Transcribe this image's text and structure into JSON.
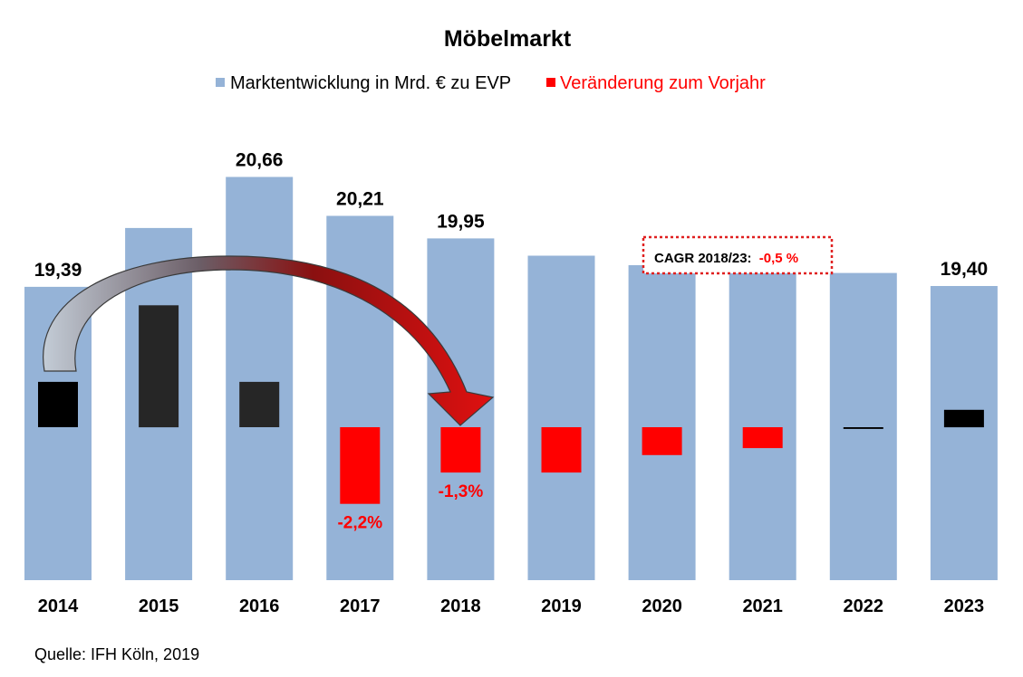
{
  "chart_data": {
    "type": "bar",
    "title": "Möbelmarkt",
    "categories": [
      "2014",
      "2015",
      "2016",
      "2017",
      "2018",
      "2019",
      "2020",
      "2021",
      "2022",
      "2023"
    ],
    "series": [
      {
        "name": "Marktentwicklung in Mrd. € zu EVP",
        "values": [
          19.39,
          20.07,
          20.66,
          20.21,
          19.95,
          19.75,
          19.64,
          19.56,
          19.55,
          19.4
        ],
        "labels": [
          "19,39",
          "",
          "20,66",
          "20,21",
          "19,95",
          "",
          "",
          "",
          "",
          "19,40"
        ],
        "color": "#95b3d7"
      },
      {
        "name": "Veränderung zum Vorjahr",
        "values": [
          1.3,
          3.5,
          1.3,
          -2.2,
          -1.3,
          -1.3,
          -0.8,
          -0.6,
          -0.05,
          0.5
        ],
        "labels": [
          "",
          "",
          "",
          "-2,2%",
          "-1,3%",
          "",
          "",
          "",
          "",
          ""
        ],
        "colors": [
          "#000000",
          "#262626",
          "#262626",
          "#ff0000",
          "#ff0000",
          "#ff0000",
          "#ff0000",
          "#ff0000",
          "#000000",
          "#000000"
        ],
        "legend_color": "#ff0000"
      }
    ],
    "ylim": [
      16,
      21
    ],
    "grid": false,
    "legend_position": "top"
  },
  "annotation": {
    "cagr_label": "CAGR 2018/23:",
    "cagr_value": "-0,5 %"
  },
  "source": "Quelle: IFH Köln, 2019",
  "colors": {
    "bar": "#95b3d7",
    "decline": "#ff0000",
    "growth": "#000000",
    "arrow_dark": "#8b0000",
    "arrow_light": "#b9c4cf"
  }
}
